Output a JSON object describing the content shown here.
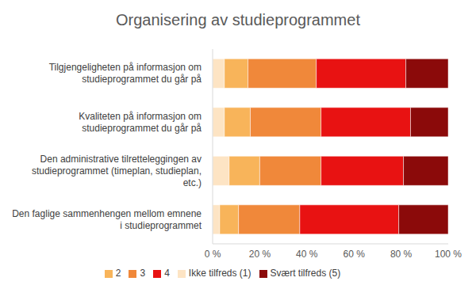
{
  "chart_data": {
    "type": "bar",
    "title": "Organisering av studieprogrammet",
    "orientation": "horizontal",
    "stacked": true,
    "grid": false,
    "legend": "bottom",
    "categories": [
      "Tilgjengeligheten på informasjon om studieprogrammet du går på",
      "Kvaliteten på informasjon om studieprogrammet du går på",
      "Den administrative tilretteleggingen av studieprogrammet (timeplan, studieplan, etc.)",
      "Den faglige sammenhengen mellom emnene i studieprogrammet"
    ],
    "series": [
      {
        "name": "Ikke tilfreds (1)",
        "color": "#fde4c4",
        "values": [
          5,
          5,
          7,
          3
        ]
      },
      {
        "name": "2",
        "color": "#f8b45a",
        "values": [
          10,
          11,
          13,
          8
        ]
      },
      {
        "name": "3",
        "color": "#f0883a",
        "values": [
          29,
          30,
          26,
          26
        ]
      },
      {
        "name": "4",
        "color": "#e81212",
        "values": [
          38,
          38,
          35,
          42
        ]
      },
      {
        "name": "Svært tilfreds (5)",
        "color": "#8b0a0a",
        "values": [
          18,
          16,
          19,
          21
        ]
      }
    ],
    "xlim": [
      0,
      100
    ],
    "xticks": [
      {
        "value": 0,
        "label": "0 %"
      },
      {
        "value": 20,
        "label": "20 %"
      },
      {
        "value": 40,
        "label": "40 %"
      },
      {
        "value": 60,
        "label": "60 %"
      },
      {
        "value": 80,
        "label": "80 %"
      },
      {
        "value": 100,
        "label": "100 %"
      }
    ]
  }
}
